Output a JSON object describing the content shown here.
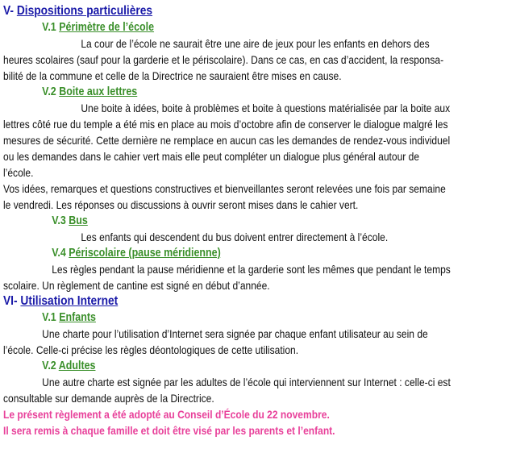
{
  "sections": [
    {
      "num": "V-",
      "title": "Dispositions particulières",
      "sub": [
        {
          "num": "V.1",
          "title": "Périmètre de l’école",
          "lines": [
            "La cour de l’école ne saurait être une aire de jeux pour les enfants en dehors des",
            "heures scolaires (sauf pour la garderie et le périscolaire). Dans ce cas, en cas d’accident, la responsa-",
            "bilité de la commune et celle de la Directrice ne sauraient être mises en cause."
          ]
        },
        {
          "num": "V.2",
          "title": "Boite aux lettres",
          "lines": [
            "Une boite à idées, boite à problèmes et boite à questions matérialisée par la boite aux",
            "lettres côté rue du temple a été mis en place au mois d’octobre afin de conserver le dialogue malgré les",
            "mesures de sécurité. Cette dernière ne remplace en aucun cas les demandes de rendez-vous individuel",
            "ou les demandes dans le cahier vert mais elle peut compléter un dialogue plus général autour de",
            "l’école.",
            "Vos idées, remarques et questions constructives et bienveillantes seront relevées une fois par semaine",
            "le vendredi. Les réponses ou discussions à ouvrir seront mises dans le cahier vert."
          ]
        },
        {
          "num": "V.3",
          "title": "Bus",
          "lines": [
            "Les enfants qui descendent du bus doivent entrer directement à l’école."
          ]
        },
        {
          "num": "V.4",
          "title": "Périscolaire (pause méridienne)",
          "lines": [
            "Les règles pendant la pause méridienne et la garderie sont les mêmes que pendant le temps",
            "scolaire. Un règlement de cantine est signé en début d’année."
          ]
        }
      ]
    },
    {
      "num": "VI-",
      "title": "Utilisation Internet",
      "sub": [
        {
          "num": "V.1",
          "title": "Enfants",
          "lines": [
            "Une charte pour l’utilisation d’Internet sera signée par chaque enfant utilisateur au sein de",
            "l’école. Celle-ci précise les règles déontologiques de cette utilisation."
          ]
        },
        {
          "num": "V.2",
          "title": "Adultes",
          "lines": [
            "Une autre charte est signée par les adultes de l’école qui interviennent sur Internet : celle-ci est",
            "consultable sur demande auprès de la Directrice."
          ]
        }
      ]
    }
  ],
  "closing": [
    "Le présent règlement a été adopté au Conseil d’École du 22 novembre.",
    "Il sera remis à chaque famille et doit être visé par les parents et l’enfant."
  ],
  "colors": {
    "section": "#1a1aa8",
    "subsection": "#3a8f2a",
    "closing": "#e8409a"
  }
}
